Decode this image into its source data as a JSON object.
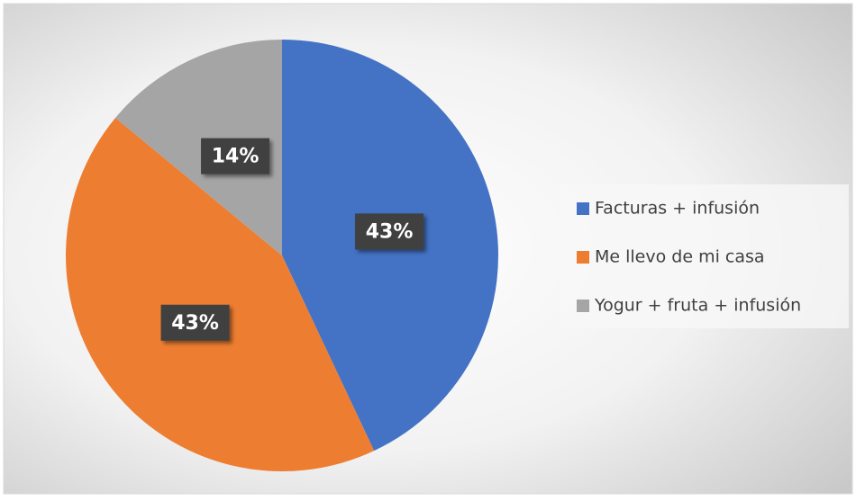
{
  "chart_data": {
    "type": "pie",
    "categories": [
      "Facturas + infusión",
      "Me llevo de mi casa",
      "Yogur + fruta + infusión"
    ],
    "values": [
      43,
      43,
      14
    ],
    "value_labels": [
      "43%",
      "43%",
      "14%"
    ],
    "colors": [
      "#4472c4",
      "#ed7d31",
      "#a5a5a5"
    ],
    "legend": "right"
  }
}
